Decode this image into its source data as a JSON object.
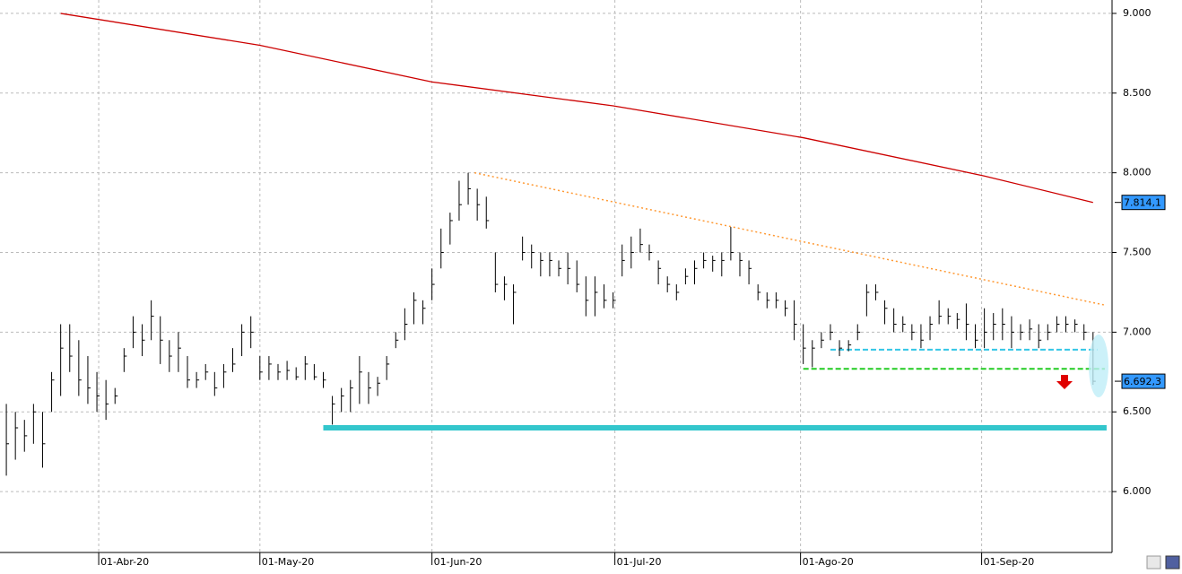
{
  "chart_data": {
    "type": "ohlc",
    "bar_color": "#000000",
    "grid": true,
    "xlim": [
      -0.7,
      122.1
    ],
    "ylim": [
      5.618,
      9.084
    ],
    "yticks": [
      {
        "value": 6,
        "label": "6.000"
      },
      {
        "value": 6.5,
        "label": "6.500"
      },
      {
        "value": 7,
        "label": "7.000"
      },
      {
        "value": 7.5,
        "label": "7.500"
      },
      {
        "value": 8,
        "label": "8.000"
      },
      {
        "value": 8.5,
        "label": "8.500"
      },
      {
        "value": 9,
        "label": "9.000"
      }
    ],
    "xticks": [
      {
        "value": 10.2,
        "label": "01-Abr-20"
      },
      {
        "value": 28,
        "label": "01-May-20"
      },
      {
        "value": 47,
        "label": "01-Jun-20"
      },
      {
        "value": 67.2,
        "label": "01-Jul-20"
      },
      {
        "value": 87.7,
        "label": "01-Ago-20"
      },
      {
        "value": 107.7,
        "label": "01-Sep-20"
      }
    ],
    "high": [
      6.55,
      6.5,
      6.45,
      6.55,
      6.5,
      6.75,
      7.05,
      7.05,
      6.95,
      6.85,
      6.75,
      6.7,
      6.65,
      6.9,
      7.1,
      7.05,
      7.2,
      7.1,
      6.95,
      7.0,
      6.85,
      6.75,
      6.8,
      6.75,
      6.8,
      6.9,
      7.05,
      7.1,
      6.85,
      6.85,
      6.8,
      6.82,
      6.78,
      6.85,
      6.8,
      6.75,
      6.6,
      6.65,
      6.7,
      6.85,
      6.75,
      6.72,
      6.85,
      7.0,
      7.15,
      7.25,
      7.2,
      7.4,
      7.65,
      7.75,
      7.95,
      8.0,
      7.9,
      7.85,
      7.5,
      7.35,
      7.3,
      7.6,
      7.55,
      7.5,
      7.5,
      7.45,
      7.5,
      7.45,
      7.35,
      7.35,
      7.3,
      7.25,
      7.55,
      7.6,
      7.65,
      7.55,
      7.45,
      7.35,
      7.3,
      7.4,
      7.45,
      7.5,
      7.48,
      7.5,
      7.66,
      7.5,
      7.45,
      7.3,
      7.25,
      7.25,
      7.2,
      7.2,
      7.05,
      6.95,
      7.0,
      7.05,
      6.95,
      6.95,
      7.05,
      7.3,
      7.3,
      7.2,
      7.15,
      7.1,
      7.05,
      7.05,
      7.1,
      7.2,
      7.15,
      7.12,
      7.18,
      7.05,
      7.15,
      7.12,
      7.15,
      7.1,
      7.05,
      7.08,
      7.05,
      7.05,
      7.1,
      7.1,
      7.08,
      7.05,
      7.0
    ],
    "low": [
      6.1,
      6.2,
      6.25,
      6.3,
      6.15,
      6.5,
      6.6,
      6.75,
      6.6,
      6.55,
      6.5,
      6.45,
      6.55,
      6.75,
      6.9,
      6.85,
      6.95,
      6.8,
      6.75,
      6.75,
      6.65,
      6.65,
      6.7,
      6.6,
      6.65,
      6.75,
      6.85,
      6.9,
      6.7,
      6.7,
      6.7,
      6.7,
      6.7,
      6.7,
      6.7,
      6.65,
      6.42,
      6.5,
      6.5,
      6.55,
      6.55,
      6.6,
      6.7,
      6.9,
      6.95,
      7.05,
      7.05,
      7.2,
      7.4,
      7.55,
      7.7,
      7.8,
      7.7,
      7.65,
      7.25,
      7.2,
      7.05,
      7.45,
      7.4,
      7.35,
      7.35,
      7.35,
      7.3,
      7.25,
      7.1,
      7.1,
      7.15,
      7.15,
      7.35,
      7.4,
      7.5,
      7.45,
      7.3,
      7.25,
      7.2,
      7.3,
      7.3,
      7.4,
      7.38,
      7.35,
      7.45,
      7.35,
      7.3,
      7.2,
      7.15,
      7.15,
      7.1,
      6.95,
      6.8,
      6.78,
      6.9,
      6.95,
      6.85,
      6.88,
      6.95,
      7.1,
      7.2,
      7.05,
      7.0,
      7.0,
      6.95,
      6.9,
      6.95,
      7.05,
      7.05,
      7.02,
      6.95,
      6.9,
      6.9,
      6.95,
      6.95,
      6.9,
      6.95,
      6.95,
      6.9,
      6.95,
      7.0,
      7.0,
      7.0,
      6.95,
      6.67
    ],
    "close": [
      6.3,
      6.4,
      6.35,
      6.5,
      6.3,
      6.7,
      6.9,
      6.85,
      6.7,
      6.65,
      6.6,
      6.55,
      6.6,
      6.85,
      7.0,
      6.95,
      7.1,
      6.95,
      6.85,
      6.9,
      6.7,
      6.7,
      6.75,
      6.65,
      6.75,
      6.8,
      7.0,
      7.0,
      6.75,
      6.8,
      6.75,
      6.76,
      6.72,
      6.8,
      6.72,
      6.7,
      6.55,
      6.6,
      6.65,
      6.75,
      6.65,
      6.68,
      6.8,
      6.95,
      7.05,
      7.2,
      7.15,
      7.3,
      7.5,
      7.7,
      7.8,
      7.9,
      7.8,
      7.7,
      7.3,
      7.3,
      7.25,
      7.5,
      7.5,
      7.45,
      7.45,
      7.4,
      7.4,
      7.3,
      7.2,
      7.25,
      7.2,
      7.2,
      7.45,
      7.5,
      7.55,
      7.5,
      7.4,
      7.3,
      7.25,
      7.35,
      7.4,
      7.45,
      7.45,
      7.45,
      7.5,
      7.45,
      7.4,
      7.25,
      7.2,
      7.2,
      7.15,
      7.05,
      6.9,
      6.9,
      6.95,
      7.0,
      6.9,
      6.92,
      7.0,
      7.25,
      7.25,
      7.15,
      7.05,
      7.05,
      7.0,
      6.95,
      7.05,
      7.1,
      7.1,
      7.08,
      7.05,
      6.95,
      7.0,
      7.05,
      7.05,
      7.0,
      7.0,
      7.02,
      6.95,
      7.0,
      7.05,
      7.05,
      7.05,
      7.0,
      6.692
    ],
    "moving_average": {
      "color": "#cc0000",
      "x": [
        6,
        28,
        47,
        67,
        88,
        108,
        120
      ],
      "values": [
        9.0,
        8.8,
        8.57,
        8.42,
        8.22,
        7.98,
        7.814
      ]
    },
    "lines": [
      {
        "color": "#ff9933",
        "style": "dotted",
        "x": [
          51.7,
          121.3
        ],
        "values": [
          8.0,
          7.17
        ]
      },
      {
        "color": "#33c6cc",
        "style": "thick",
        "x": [
          35,
          121.5
        ],
        "values": [
          6.4,
          6.4
        ]
      },
      {
        "color": "#33c6e6",
        "style": "dashed",
        "x": [
          91,
          120.5
        ],
        "values": [
          6.89,
          6.89
        ]
      },
      {
        "color": "#22cc22",
        "style": "dashed",
        "x": [
          88,
          121.3
        ],
        "values": [
          6.77,
          6.77
        ]
      }
    ],
    "price_tags": [
      {
        "value": 7.8141,
        "label": "7.814,1"
      },
      {
        "value": 6.6923,
        "label": "6.692,3"
      }
    ]
  }
}
